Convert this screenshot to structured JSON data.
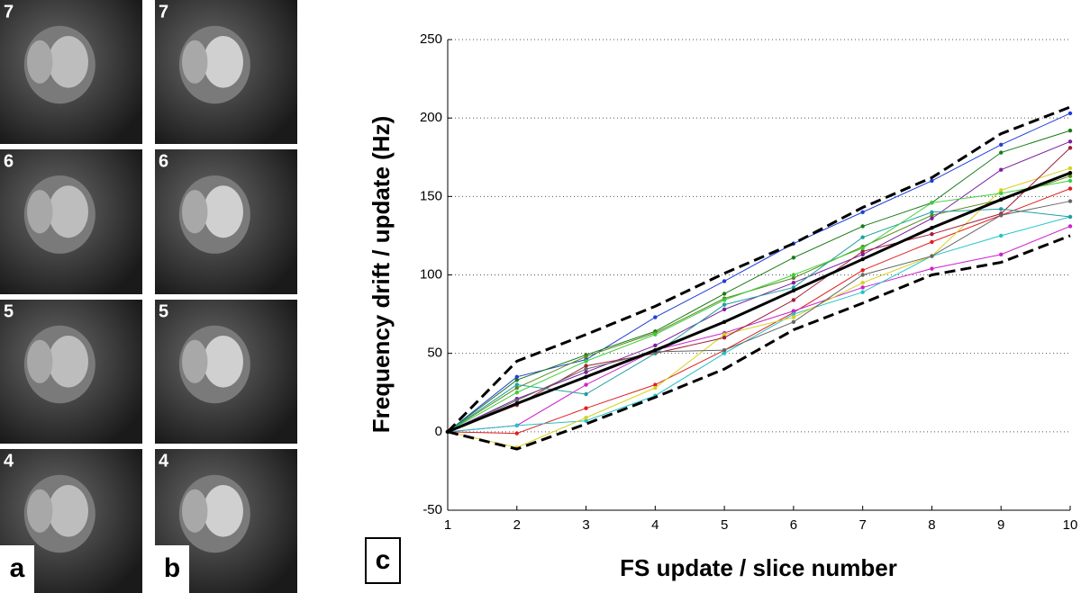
{
  "panels": {
    "row_labels": [
      "7",
      "6",
      "5",
      "4"
    ],
    "column_labels": [
      "a",
      "b"
    ],
    "chart_label": "c"
  },
  "chart_data": {
    "type": "line",
    "ylabel": "Frequency drift / update (Hz)",
    "xlabel": "FS update / slice number",
    "x": [
      1,
      2,
      3,
      4,
      5,
      6,
      7,
      8,
      9,
      10
    ],
    "xlim": [
      1,
      10
    ],
    "xticks": [
      1,
      2,
      3,
      4,
      5,
      6,
      7,
      8,
      9,
      10
    ],
    "ylim": [
      -50,
      250
    ],
    "yticks": [
      -50,
      0,
      50,
      100,
      150,
      200,
      250
    ],
    "grid": true,
    "series": [
      {
        "color": "#1f3fd6",
        "values": [
          0,
          35,
          46,
          73,
          96,
          120,
          140,
          160,
          183,
          203
        ]
      },
      {
        "color": "#1a7a1a",
        "values": [
          0,
          33,
          49,
          64,
          88,
          111,
          131,
          146,
          178,
          192
        ]
      },
      {
        "color": "#e01f1f",
        "values": [
          0,
          -1,
          15,
          30,
          52,
          76,
          103,
          121,
          138,
          155
        ]
      },
      {
        "color": "#cc22cc",
        "values": [
          0,
          4,
          30,
          52,
          63,
          77,
          92,
          104,
          113,
          131
        ]
      },
      {
        "color": "#22c4cc",
        "values": [
          0,
          4,
          7,
          23,
          50,
          75,
          89,
          112,
          125,
          137
        ]
      },
      {
        "color": "#d6d21f",
        "values": [
          0,
          -10,
          9,
          28,
          62,
          73,
          95,
          112,
          154,
          168
        ]
      },
      {
        "color": "#5a8a1a",
        "values": [
          0,
          28,
          48,
          63,
          85,
          98,
          118,
          138,
          148,
          163
        ]
      },
      {
        "color": "#7a1fa0",
        "values": [
          0,
          21,
          38,
          55,
          78,
          95,
          113,
          136,
          167,
          185
        ]
      },
      {
        "color": "#a01f3a",
        "values": [
          0,
          17,
          42,
          50,
          60,
          84,
          115,
          126,
          139,
          181
        ]
      },
      {
        "color": "#1fa0a0",
        "values": [
          0,
          30,
          24,
          50,
          81,
          92,
          124,
          140,
          142,
          137
        ]
      },
      {
        "color": "#666666",
        "values": [
          0,
          20,
          40,
          51,
          52,
          70,
          100,
          112,
          138,
          147
        ]
      },
      {
        "color": "#3ccf3c",
        "values": [
          0,
          25,
          45,
          62,
          84,
          100,
          117,
          146,
          152,
          160
        ]
      },
      {
        "color": "#000000",
        "values": [
          0,
          18,
          35,
          52,
          70,
          90,
          110,
          130,
          148,
          165
        ],
        "width": 3
      },
      {
        "color": "#000000",
        "values": [
          0,
          45,
          62,
          80,
          101,
          120,
          143,
          162,
          190,
          207
        ],
        "width": 3,
        "dashed": true
      },
      {
        "color": "#000000",
        "values": [
          0,
          -11,
          5,
          22,
          40,
          65,
          82,
          100,
          108,
          125
        ],
        "width": 3,
        "dashed": true
      }
    ]
  }
}
